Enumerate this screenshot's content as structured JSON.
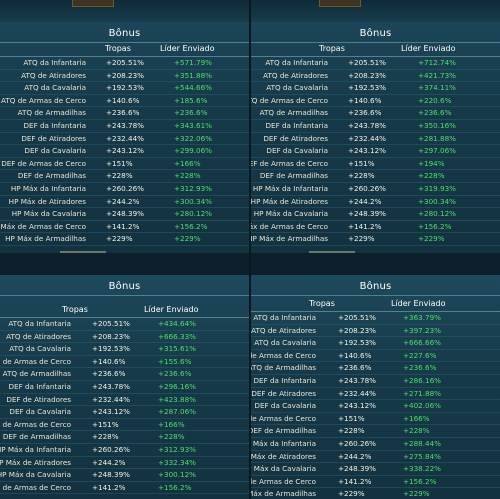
{
  "panels": [
    {
      "title": "Bônus",
      "col_tropas": "Tropas",
      "col_lider": "Líder Enviado",
      "rows": [
        {
          "name": "ATQ da Infantaria",
          "tropa": "+205.51%",
          "lider": "+571.79%"
        },
        {
          "name": "ATQ de Atiradores",
          "tropa": "+208.23%",
          "lider": "+351.88%"
        },
        {
          "name": "ATQ da Cavalaria",
          "tropa": "+192.53%",
          "lider": "+544.66%"
        },
        {
          "name": "ATQ de Armas de Cerco",
          "tropa": "+140.6%",
          "lider": "+185.6%"
        },
        {
          "name": "ATQ de Armadilhas",
          "tropa": "+236.6%",
          "lider": "+236.6%"
        },
        {
          "name": "DEF da Infantaria",
          "tropa": "+243.78%",
          "lider": "+343.61%"
        },
        {
          "name": "DEF de Atiradores",
          "tropa": "+232.44%",
          "lider": "+322.06%"
        },
        {
          "name": "DEF da Cavalaria",
          "tropa": "+243.12%",
          "lider": "+299.06%"
        },
        {
          "name": "DEF de Armas de Cerco",
          "tropa": "+151%",
          "lider": "+166%"
        },
        {
          "name": "DEF de Armadilhas",
          "tropa": "+228%",
          "lider": "+228%"
        },
        {
          "name": "HP Máx da Infantaria",
          "tropa": "+260.26%",
          "lider": "+312.93%"
        },
        {
          "name": "HP Máx de Atiradores",
          "tropa": "+244.2%",
          "lider": "+300.34%"
        },
        {
          "name": "HP Máx da Cavalaria",
          "tropa": "+248.39%",
          "lider": "+280.12%"
        },
        {
          "name": "HP Máx de Armas de Cerco",
          "tropa": "+141.2%",
          "lider": "+156.2%"
        },
        {
          "name": "HP Máx de Armadilhas",
          "tropa": "+229%",
          "lider": "+229%"
        }
      ]
    },
    {
      "title": "Bônus",
      "col_tropas": "Tropas",
      "col_lider": "Líder Enviado",
      "rows": [
        {
          "name": "ATQ da Infantaria",
          "tropa": "+205.51%",
          "lider": "+712.74%"
        },
        {
          "name": "ATQ de Atiradores",
          "tropa": "+208.23%",
          "lider": "+421.73%"
        },
        {
          "name": "ATQ da Cavalaria",
          "tropa": "+192.53%",
          "lider": "+374.11%"
        },
        {
          "name": "ATQ de Armas de Cerco",
          "tropa": "+140.6%",
          "lider": "+220.6%"
        },
        {
          "name": "ATQ de Armadilhas",
          "tropa": "+236.6%",
          "lider": "+236.6%"
        },
        {
          "name": "DEF da Infantaria",
          "tropa": "+243.78%",
          "lider": "+350.16%"
        },
        {
          "name": "DEF de Atiradores",
          "tropa": "+232.44%",
          "lider": "+281.88%"
        },
        {
          "name": "DEF da Cavalaria",
          "tropa": "+243.12%",
          "lider": "+297.06%"
        },
        {
          "name": "DEF de Armas de Cerco",
          "tropa": "+151%",
          "lider": "+194%"
        },
        {
          "name": "DEF de Armadilhas",
          "tropa": "+228%",
          "lider": "+228%"
        },
        {
          "name": "HP Máx da Infantaria",
          "tropa": "+260.26%",
          "lider": "+319.93%"
        },
        {
          "name": "HP Máx de Atiradores",
          "tropa": "+244.2%",
          "lider": "+300.34%"
        },
        {
          "name": "HP Máx da Cavalaria",
          "tropa": "+248.39%",
          "lider": "+280.12%"
        },
        {
          "name": "HP Máx de Armas de Cerco",
          "tropa": "+141.2%",
          "lider": "+156.2%"
        },
        {
          "name": "HP Máx de Armadilhas",
          "tropa": "+229%",
          "lider": "+229%"
        }
      ]
    },
    {
      "title": "Bônus",
      "col_tropas": "Tropas",
      "col_lider": "Líder Enviado",
      "rows": [
        {
          "name": "ATQ da Infantaria",
          "tropa": "+205.51%",
          "lider": "+434.64%"
        },
        {
          "name": "ATQ de Atiradores",
          "tropa": "+208.23%",
          "lider": "+666.33%"
        },
        {
          "name": "ATQ da Cavalaria",
          "tropa": "+192.53%",
          "lider": "+315.61%"
        },
        {
          "name": "ATQ de Armas de Cerco",
          "tropa": "+140.6%",
          "lider": "+155.6%"
        },
        {
          "name": "ATQ de Armadilhas",
          "tropa": "+236.6%",
          "lider": "+236.6%"
        },
        {
          "name": "DEF da Infantaria",
          "tropa": "+243.78%",
          "lider": "+296.16%"
        },
        {
          "name": "DEF de Atiradores",
          "tropa": "+232.44%",
          "lider": "+423.88%"
        },
        {
          "name": "DEF da Cavalaria",
          "tropa": "+243.12%",
          "lider": "+287.06%"
        },
        {
          "name": "DEF de Armas de Cerco",
          "tropa": "+151%",
          "lider": "+166%"
        },
        {
          "name": "DEF de Armadilhas",
          "tropa": "+228%",
          "lider": "+228%"
        },
        {
          "name": "HP Máx da Infantaria",
          "tropa": "+260.26%",
          "lider": "+312.93%"
        },
        {
          "name": "HP Máx de Atiradores",
          "tropa": "+244.2%",
          "lider": "+332.34%"
        },
        {
          "name": "HP Máx da Cavalaria",
          "tropa": "+248.39%",
          "lider": "+300.12%"
        },
        {
          "name": "HP Máx de Armas de Cerco",
          "tropa": "+141.2%",
          "lider": "+156.2%"
        }
      ]
    },
    {
      "title": "Bônus",
      "col_tropas": "Tropas",
      "col_lider": "Líder Enviado",
      "rows": [
        {
          "name": "ATQ da Infantaria",
          "tropa": "+205.51%",
          "lider": "+363.79%"
        },
        {
          "name": "ATQ de Atiradores",
          "tropa": "+208.23%",
          "lider": "+397.23%"
        },
        {
          "name": "ATQ da Cavalaria",
          "tropa": "+192.53%",
          "lider": "+666.66%"
        },
        {
          "name": "ATQ de Armas de Cerco",
          "tropa": "+140.6%",
          "lider": "+227.6%"
        },
        {
          "name": "ATQ de Armadilhas",
          "tropa": "+236.6%",
          "lider": "+236.6%"
        },
        {
          "name": "DEF da Infantaria",
          "tropa": "+243.78%",
          "lider": "+286.16%"
        },
        {
          "name": "DEF de Atiradores",
          "tropa": "+232.44%",
          "lider": "+271.88%"
        },
        {
          "name": "DEF da Cavalaria",
          "tropa": "+243.12%",
          "lider": "+402.06%"
        },
        {
          "name": "DEF de Armas de Cerco",
          "tropa": "+151%",
          "lider": "+166%"
        },
        {
          "name": "DEF de Armadilhas",
          "tropa": "+228%",
          "lider": "+228%"
        },
        {
          "name": "HP Máx da Infantaria",
          "tropa": "+260.26%",
          "lider": "+288.44%"
        },
        {
          "name": "HP Máx de Atiradores",
          "tropa": "+244.2%",
          "lider": "+275.84%"
        },
        {
          "name": "HP Máx da Cavalaria",
          "tropa": "+248.39%",
          "lider": "+338.22%"
        },
        {
          "name": "HP Máx de Armas de Cerco",
          "tropa": "+141.2%",
          "lider": "+156.2%"
        },
        {
          "name": "HP Máx de Armadilhas",
          "tropa": "+229%",
          "lider": "+229%"
        }
      ]
    }
  ]
}
